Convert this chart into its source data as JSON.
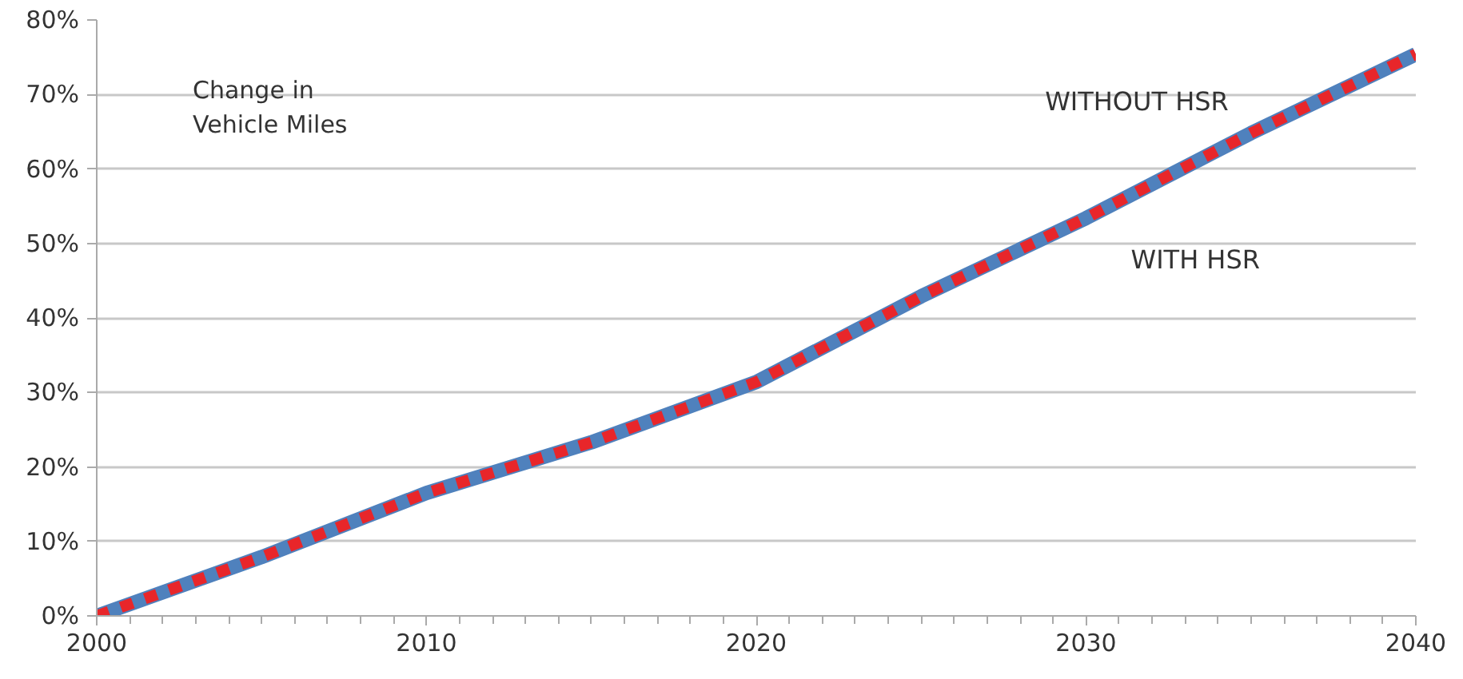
{
  "chart_data": {
    "type": "line",
    "x": [
      2000,
      2005,
      2010,
      2015,
      2020,
      2025,
      2030,
      2035,
      2040
    ],
    "series": [
      {
        "name": "WITHOUT HSR",
        "color": "#4f81bd",
        "line_style": "solid",
        "values": [
          0,
          7.9,
          16.5,
          23.3,
          31.4,
          42.9,
          53.4,
          64.8,
          75.4
        ]
      },
      {
        "name": "WITH HSR",
        "color": "#e8262a",
        "line_style": "dashed",
        "values": [
          0,
          7.9,
          16.5,
          23.3,
          31.4,
          42.9,
          53.4,
          64.8,
          75.4
        ]
      }
    ],
    "xlim": [
      2000,
      2040
    ],
    "xticks": [
      2000,
      2010,
      2020,
      2030,
      2040
    ],
    "ylim": [
      0,
      80
    ],
    "yticks": [
      {
        "value": 0,
        "label": "0%"
      },
      {
        "value": 10,
        "label": "10%"
      },
      {
        "value": 20,
        "label": "20%"
      },
      {
        "value": 30,
        "label": "30%"
      },
      {
        "value": 40,
        "label": "40%"
      },
      {
        "value": 50,
        "label": "50%"
      },
      {
        "value": 60,
        "label": "60%"
      },
      {
        "value": 70,
        "label": "70%"
      },
      {
        "value": 80,
        "label": "80%"
      }
    ],
    "annotations": [
      "Change in\nVehicle Miles"
    ],
    "grid": "y"
  }
}
